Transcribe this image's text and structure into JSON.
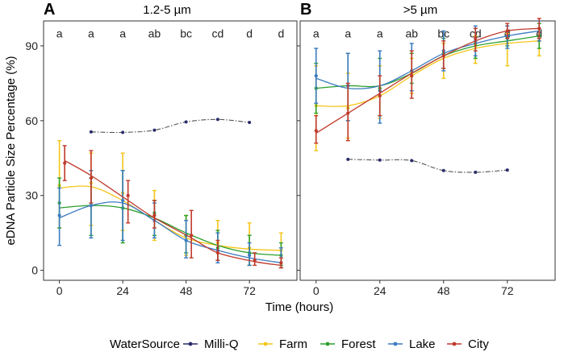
{
  "figure": {
    "ylabel": "eDNA Particle Size Percentage (%)",
    "xlabel": "Time (hours)",
    "legend": {
      "title": "WaterSource",
      "entries": [
        {
          "name": "Milli-Q",
          "color": "#2b2b6b"
        },
        {
          "name": "Farm",
          "color": "#f5c518"
        },
        {
          "name": "Forest",
          "color": "#2ca02c"
        },
        {
          "name": "Lake",
          "color": "#3b7bbf"
        },
        {
          "name": "City",
          "color": "#c0392b"
        }
      ]
    }
  },
  "chart_data": [
    {
      "type": "line",
      "panel": "A",
      "title": "1.2-5 µm",
      "xlabel": "Time (hours)",
      "ylabel": "eDNA Particle Size Percentage (%)",
      "xlim": [
        -6,
        90
      ],
      "ylim": [
        -4,
        100
      ],
      "xticks": [
        0,
        24,
        48,
        72
      ],
      "yticks": [
        0,
        30,
        60,
        90
      ],
      "significance": {
        "x": [
          0,
          12,
          24,
          36,
          48,
          60,
          72,
          84
        ],
        "labels": [
          "a",
          "a",
          "a",
          "ab",
          "bc",
          "cd",
          "d",
          "d"
        ],
        "y": 95
      },
      "milliq_dashed": {
        "x": [
          12,
          24,
          36,
          48,
          60,
          72
        ],
        "y": [
          55.5,
          55.3,
          56.2,
          59.5,
          60.5,
          59.3
        ]
      },
      "series": [
        {
          "name": "Farm",
          "x": [
            0,
            12,
            24,
            36,
            48,
            60,
            72,
            84
          ],
          "y": [
            34,
            35,
            31,
            22,
            14,
            11,
            9,
            8
          ],
          "lo": [
            17,
            18,
            16,
            12,
            6,
            4,
            2,
            1
          ],
          "hi": [
            52,
            47,
            47,
            32,
            22,
            20,
            19,
            15
          ],
          "fit": [
            33,
            33.5,
            28,
            20,
            13,
            10,
            8.5,
            8
          ]
        },
        {
          "name": "Forest",
          "x": [
            0,
            12,
            24,
            36,
            48,
            60,
            72,
            84
          ],
          "y": [
            27,
            26,
            25,
            23,
            14,
            9,
            7,
            6
          ],
          "lo": [
            17,
            14,
            11,
            14,
            7,
            4,
            2,
            2
          ],
          "hi": [
            37,
            37,
            40,
            28,
            22,
            16,
            14,
            11
          ],
          "fit": [
            25,
            26,
            25,
            21,
            15,
            10,
            7,
            6
          ]
        },
        {
          "name": "Lake",
          "x": [
            0,
            12,
            24,
            36,
            48,
            60,
            72,
            84
          ],
          "y": [
            22,
            26,
            28,
            20,
            12,
            8,
            6,
            3
          ],
          "lo": [
            10,
            13,
            12,
            13,
            5,
            3,
            2,
            1
          ],
          "hi": [
            33,
            40,
            40,
            27,
            20,
            15,
            11,
            9
          ],
          "fit": [
            21,
            26,
            27,
            20,
            12,
            8,
            5,
            3
          ]
        },
        {
          "name": "City",
          "x": [
            2,
            12,
            26,
            36,
            50,
            60,
            74,
            84
          ],
          "y": [
            43,
            37,
            30,
            22,
            14,
            7,
            4,
            3
          ],
          "lo": [
            36,
            27,
            19,
            17,
            5,
            4,
            2,
            1
          ],
          "hi": [
            50,
            48,
            36,
            28,
            24,
            12,
            7,
            5
          ],
          "fit": [
            44,
            38,
            28,
            21,
            13,
            7,
            3.5,
            2
          ]
        }
      ]
    },
    {
      "type": "line",
      "panel": "B",
      "title": ">5 µm",
      "xlabel": "Time (hours)",
      "ylabel": "",
      "xlim": [
        -6,
        90
      ],
      "ylim": [
        -4,
        100
      ],
      "xticks": [
        0,
        24,
        48,
        72
      ],
      "yticks": [
        0,
        30,
        60,
        90
      ],
      "significance": {
        "x": [
          0,
          12,
          24,
          36,
          48,
          60,
          72,
          84
        ],
        "labels": [
          "a",
          "a",
          "a",
          "ab",
          "bc",
          "cd",
          "d",
          "d"
        ],
        "y": 95
      },
      "milliq_dashed": {
        "x": [
          12,
          24,
          36,
          48,
          60,
          72
        ],
        "y": [
          44.5,
          44.2,
          44,
          40,
          39.3,
          40.2
        ]
      },
      "series": [
        {
          "name": "Farm",
          "x": [
            0,
            12,
            24,
            36,
            48,
            60,
            72,
            84
          ],
          "y": [
            66,
            65,
            70,
            79,
            86,
            90,
            91,
            92
          ],
          "lo": [
            48,
            53,
            61,
            71,
            77,
            83,
            82,
            86
          ],
          "hi": [
            82,
            79,
            82,
            85,
            91,
            94,
            95,
            97
          ],
          "fit": [
            66,
            66,
            70,
            78,
            85,
            89,
            91,
            92
          ]
        },
        {
          "name": "Forest",
          "x": [
            0,
            12,
            24,
            36,
            48,
            60,
            72,
            84
          ],
          "y": [
            73,
            74,
            73,
            80,
            87,
            91,
            93,
            94
          ],
          "lo": [
            63,
            60,
            62,
            75,
            81,
            85,
            90,
            89
          ],
          "hi": [
            83,
            87,
            85,
            87,
            93,
            97,
            98,
            99
          ],
          "fit": [
            73,
            74,
            74,
            79,
            86,
            90,
            92,
            94
          ]
        },
        {
          "name": "Lake",
          "x": [
            0,
            12,
            24,
            36,
            48,
            60,
            72,
            84
          ],
          "y": [
            78,
            74,
            72,
            80,
            88,
            92,
            94,
            97
          ],
          "lo": [
            67,
            60,
            59,
            72,
            80,
            86,
            89,
            92
          ],
          "hi": [
            89,
            87,
            88,
            91,
            96,
            98,
            98,
            100
          ],
          "fit": [
            77,
            73,
            74,
            80,
            87,
            91,
            94,
            96
          ]
        },
        {
          "name": "City",
          "x": [
            0,
            12,
            24,
            36,
            48,
            60,
            72,
            84
          ],
          "y": [
            56,
            63,
            70,
            78,
            86,
            93,
            96,
            97
          ],
          "lo": [
            51,
            52,
            62,
            69,
            81,
            88,
            93,
            93
          ],
          "hi": [
            62,
            75,
            78,
            88,
            92,
            97,
            99,
            101
          ],
          "fit": [
            55,
            63,
            71,
            79,
            86,
            92,
            96,
            97
          ]
        }
      ]
    }
  ]
}
